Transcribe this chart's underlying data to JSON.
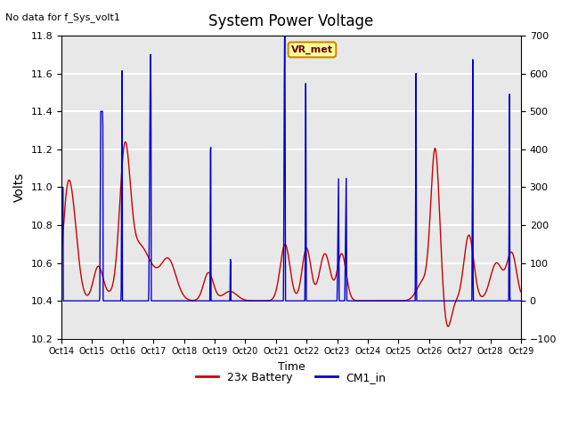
{
  "title": "System Power Voltage",
  "top_left_text": "No data for f_Sys_volt1",
  "xlabel": "Time",
  "ylabel_left": "Volts",
  "ylabel_right": "",
  "ylim_left": [
    10.2,
    11.8
  ],
  "ylim_right": [
    -100,
    700
  ],
  "background_color": "#e8e8e8",
  "figure_bg": "#ffffff",
  "x_tick_labels": [
    "Oct 14",
    "Oct 15",
    "Oct 16",
    "Oct 17",
    "Oct 18",
    "Oct 19",
    "Oct 20",
    "Oct 21",
    "Oct 22",
    "Oct 23",
    "Oct 24",
    "Oct 25",
    "Oct 26",
    "Oct 27",
    "Oct 28",
    "Oct 29"
  ],
  "x_ticks": [
    0,
    1,
    2,
    3,
    4,
    5,
    6,
    7,
    8,
    9,
    10,
    11,
    12,
    13,
    14,
    15
  ],
  "legend_entries": [
    "23x Battery",
    "CM1_in"
  ],
  "legend_colors": [
    "#cc0000",
    "#0000cc"
  ],
  "annotation_text": "VR_met",
  "annotation_box_color": "#ffff99",
  "annotation_box_edge": "#cc8800",
  "red_line_color": "#cc0000",
  "blue_line_color": "#0000cc",
  "grid_color": "#ffffff",
  "yticks_left": [
    10.2,
    10.4,
    10.6,
    10.8,
    11.0,
    11.2,
    11.4,
    11.6,
    11.8
  ],
  "yticks_right": [
    -100,
    0,
    100,
    200,
    300,
    400,
    500,
    600,
    700
  ]
}
